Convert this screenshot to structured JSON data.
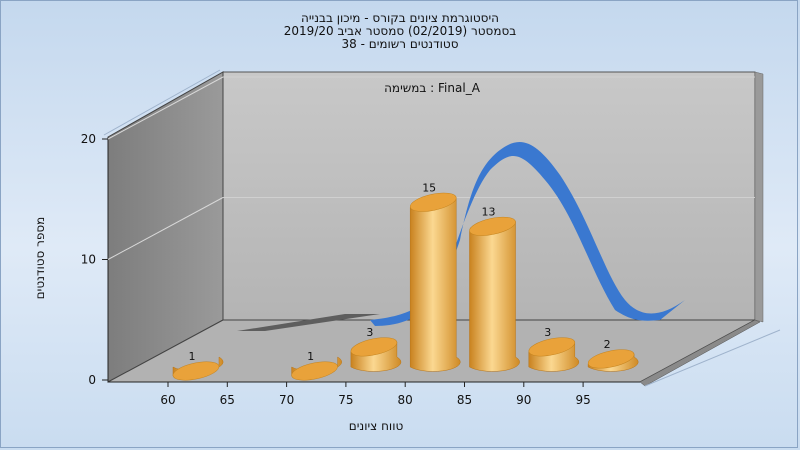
{
  "chart_data": {
    "type": "bar",
    "title_lines": [
      "היסטוגרמת ציונים בקורס - מיכון בבנייה",
      "בסמסטר  (02/2019)  סמסטר אביב 2019/20",
      "סטודנטים רשומים - 38"
    ],
    "subtitle": "במשימה : Final_A",
    "xlabel": "טווח ציונים",
    "ylabel": "מספר סטודנטים",
    "x_ticks": [
      "60",
      "65",
      "70",
      "75",
      "80",
      "85",
      "90",
      "95"
    ],
    "y_ticks": [
      "0",
      "10",
      "20"
    ],
    "ylim": [
      0,
      20
    ],
    "categories": [
      "60-65",
      "65-70",
      "70-75",
      "75-80",
      "80-85",
      "85-90",
      "90-95",
      "95-100"
    ],
    "values": [
      1,
      0,
      1,
      3,
      15,
      13,
      3,
      2
    ],
    "bar_color": "#e8a43c",
    "curve_color": "#3a78d0",
    "floor_color": "#b0b0b0",
    "wall_color": "#bdbdbd",
    "side_wall_color": "#888888"
  }
}
